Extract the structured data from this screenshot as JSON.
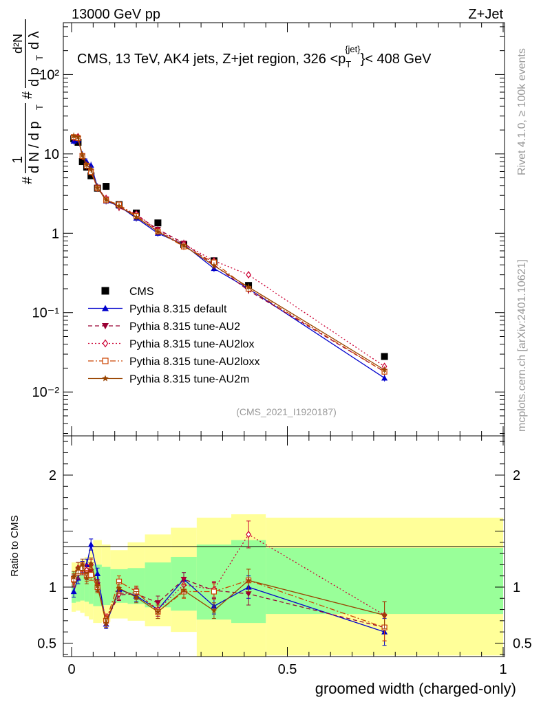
{
  "header": {
    "left": "13000 GeV pp",
    "right": "Z+Jet"
  },
  "side_labels": {
    "rivet": "Rivet 4.1.0, ≥ 100k events",
    "mcplots": "mcplots.cern.ch [arXiv:2401.10621]"
  },
  "plot_title": {
    "prefix": "CMS, 13 TeV, AK4 jets, Z+jet region, 326 <",
    "p": "p",
    "sub": "T",
    "sup": "{jet}",
    "suffix": "}< 408 GeV"
  },
  "y_label": {
    "hash1": "#",
    "one": "1",
    "dN": "d N / d p",
    "T1": "T",
    "hash2": "#",
    "d2N": "d²N",
    "dp": "d p",
    "T2": "T",
    "dl": "d λ"
  },
  "watermark": "(CMS_2021_I1920187)",
  "x_label": "groomed width (charged-only)",
  "ratio_label": "Ratio to CMS",
  "chart_data": [
    {
      "type": "scatter",
      "panel": "main",
      "yscale": "log",
      "xlim": [
        -0.02,
        1.0
      ],
      "ylim": [
        0.0028,
        450
      ],
      "y_ticks": [
        {
          "value": 0.01,
          "label": "10⁻²"
        },
        {
          "value": 0.1,
          "label": "10⁻¹"
        },
        {
          "value": 1,
          "label": "1"
        },
        {
          "value": 10,
          "label": "10"
        },
        {
          "value": 100,
          "label": "10²"
        }
      ],
      "x": [
        0.005,
        0.015,
        0.025,
        0.035,
        0.045,
        0.06,
        0.08,
        0.11,
        0.15,
        0.2,
        0.26,
        0.33,
        0.41,
        0.725
      ],
      "series": [
        {
          "name": "CMS",
          "color": "#000000",
          "marker": "square",
          "line": "none",
          "values": [
            15.5,
            14.0,
            8.0,
            6.8,
            5.3,
            3.7,
            3.9,
            2.3,
            1.8,
            1.35,
            0.72,
            0.45,
            0.22,
            0.028
          ]
        },
        {
          "name": "Pythia 8.315 default",
          "color": "#0000cc",
          "marker": "triangle-up",
          "line": "solid",
          "values": [
            14.5,
            15.0,
            9.8,
            8.0,
            7.2,
            3.85,
            2.55,
            2.2,
            1.55,
            1.0,
            0.72,
            0.36,
            0.2,
            0.015
          ]
        },
        {
          "name": "Pythia 8.315 tune-AU2",
          "color": "#990033",
          "marker": "triangle-down",
          "line": "dashed",
          "values": [
            16.2,
            15.5,
            9.5,
            7.0,
            6.0,
            3.8,
            2.7,
            2.1,
            1.7,
            1.12,
            0.75,
            0.4,
            0.19,
            0.018
          ]
        },
        {
          "name": "Pythia 8.315 tune-AU2lox",
          "color": "#cc0033",
          "marker": "diamond-open",
          "line": "dotted",
          "values": [
            16.0,
            16.5,
            9.3,
            7.2,
            6.1,
            3.7,
            2.75,
            2.15,
            1.75,
            1.08,
            0.73,
            0.45,
            0.3,
            0.021
          ]
        },
        {
          "name": "Pythia 8.315 tune-AU2loxx",
          "color": "#cc4400",
          "marker": "square-open",
          "line": "dashdot",
          "values": [
            16.3,
            15.8,
            9.4,
            7.1,
            5.9,
            3.7,
            2.6,
            2.3,
            1.65,
            1.05,
            0.68,
            0.43,
            0.2,
            0.018
          ]
        },
        {
          "name": "Pythia 8.315 tune-AU2m",
          "color": "#994400",
          "marker": "star",
          "line": "solid",
          "values": [
            16.8,
            16.3,
            9.6,
            7.3,
            6.4,
            3.75,
            2.65,
            2.2,
            1.6,
            1.05,
            0.7,
            0.39,
            0.21,
            0.019
          ]
        }
      ],
      "legend_position": "center-left"
    },
    {
      "type": "scatter",
      "panel": "ratio",
      "xlim": [
        -0.02,
        1.0
      ],
      "ylim": [
        0.38,
        2.35
      ],
      "y_ticks": [
        {
          "value": 0.5,
          "label": "0.5"
        },
        {
          "value": 1,
          "label": "1"
        },
        {
          "value": 2,
          "label": "2"
        }
      ],
      "x_ticks": [
        {
          "value": 0,
          "label": "0"
        },
        {
          "value": 0.5,
          "label": "0.5"
        },
        {
          "value": 1,
          "label": "1"
        }
      ],
      "bands": {
        "edges": [
          0,
          0.01,
          0.02,
          0.03,
          0.04,
          0.05,
          0.07,
          0.09,
          0.13,
          0.17,
          0.23,
          0.29,
          0.37,
          0.45,
          1.0
        ],
        "inner_color": "#99ff99",
        "outer_color": "#ffff99",
        "inner_lo": [
          0.86,
          0.87,
          0.88,
          0.87,
          0.85,
          0.83,
          0.84,
          0.86,
          0.85,
          0.82,
          0.79,
          0.71,
          0.68,
          0.76
        ],
        "inner_hi": [
          1.14,
          1.13,
          1.12,
          1.13,
          1.16,
          1.2,
          1.18,
          1.16,
          1.17,
          1.22,
          1.27,
          1.38,
          1.42,
          1.35
        ],
        "outer_lo": [
          0.78,
          0.79,
          0.77,
          0.74,
          0.71,
          0.68,
          0.69,
          0.72,
          0.7,
          0.65,
          0.6,
          0.37,
          0.35,
          0.39
        ],
        "outer_hi": [
          1.22,
          1.22,
          1.24,
          1.27,
          1.34,
          1.42,
          1.38,
          1.33,
          1.4,
          1.47,
          1.53,
          1.62,
          1.65,
          1.62
        ]
      },
      "series": [
        {
          "name": "Pythia 8.315 default",
          "color": "#0000cc",
          "marker": "triangle-up",
          "line": "solid",
          "values": [
            0.96,
            1.08,
            1.18,
            1.2,
            1.38,
            1.12,
            0.67,
            0.98,
            0.92,
            0.8,
            1.07,
            0.83,
            1.0,
            0.6
          ],
          "errors": [
            0.05,
            0.05,
            0.05,
            0.05,
            0.05,
            0.05,
            0.04,
            0.05,
            0.05,
            0.06,
            0.06,
            0.07,
            0.1,
            0.12
          ]
        },
        {
          "name": "Pythia 8.315 tune-AU2",
          "color": "#990033",
          "marker": "triangle-down",
          "line": "dashed",
          "values": [
            1.06,
            1.12,
            1.17,
            1.12,
            1.14,
            1.02,
            0.7,
            0.93,
            0.94,
            0.86,
            1.07,
            0.97,
            0.94,
            0.64
          ],
          "errors": [
            0.05,
            0.05,
            0.05,
            0.05,
            0.05,
            0.05,
            0.04,
            0.05,
            0.05,
            0.06,
            0.06,
            0.07,
            0.1,
            0.12
          ]
        },
        {
          "name": "Pythia 8.315 tune-AU2lox",
          "color": "#cc0033",
          "marker": "diamond-open",
          "line": "dotted",
          "values": [
            1.05,
            1.17,
            1.16,
            1.15,
            1.2,
            1.0,
            0.72,
            0.94,
            0.95,
            0.8,
            1.02,
            0.98,
            1.47,
            0.75
          ],
          "errors": [
            0.05,
            0.05,
            0.05,
            0.05,
            0.05,
            0.05,
            0.04,
            0.05,
            0.05,
            0.06,
            0.06,
            0.07,
            0.12,
            0.12
          ]
        },
        {
          "name": "Pythia 8.315 tune-AU2loxx",
          "color": "#cc4400",
          "marker": "square-open",
          "line": "dashdot",
          "values": [
            1.07,
            1.13,
            1.17,
            1.1,
            1.11,
            1.0,
            0.7,
            1.05,
            0.96,
            0.78,
            0.96,
            0.96,
            1.06,
            0.64
          ],
          "errors": [
            0.05,
            0.05,
            0.05,
            0.05,
            0.05,
            0.05,
            0.04,
            0.05,
            0.05,
            0.06,
            0.06,
            0.07,
            0.1,
            0.12
          ]
        },
        {
          "name": "Pythia 8.315 tune-AU2m",
          "color": "#994400",
          "marker": "star",
          "line": "solid",
          "values": [
            1.09,
            1.17,
            1.2,
            1.08,
            1.21,
            1.01,
            0.68,
            0.99,
            0.91,
            0.78,
            0.97,
            0.79,
            1.06,
            0.75
          ],
          "errors": [
            0.05,
            0.05,
            0.05,
            0.05,
            0.05,
            0.05,
            0.04,
            0.05,
            0.05,
            0.06,
            0.06,
            0.07,
            0.1,
            0.12
          ]
        }
      ]
    }
  ]
}
